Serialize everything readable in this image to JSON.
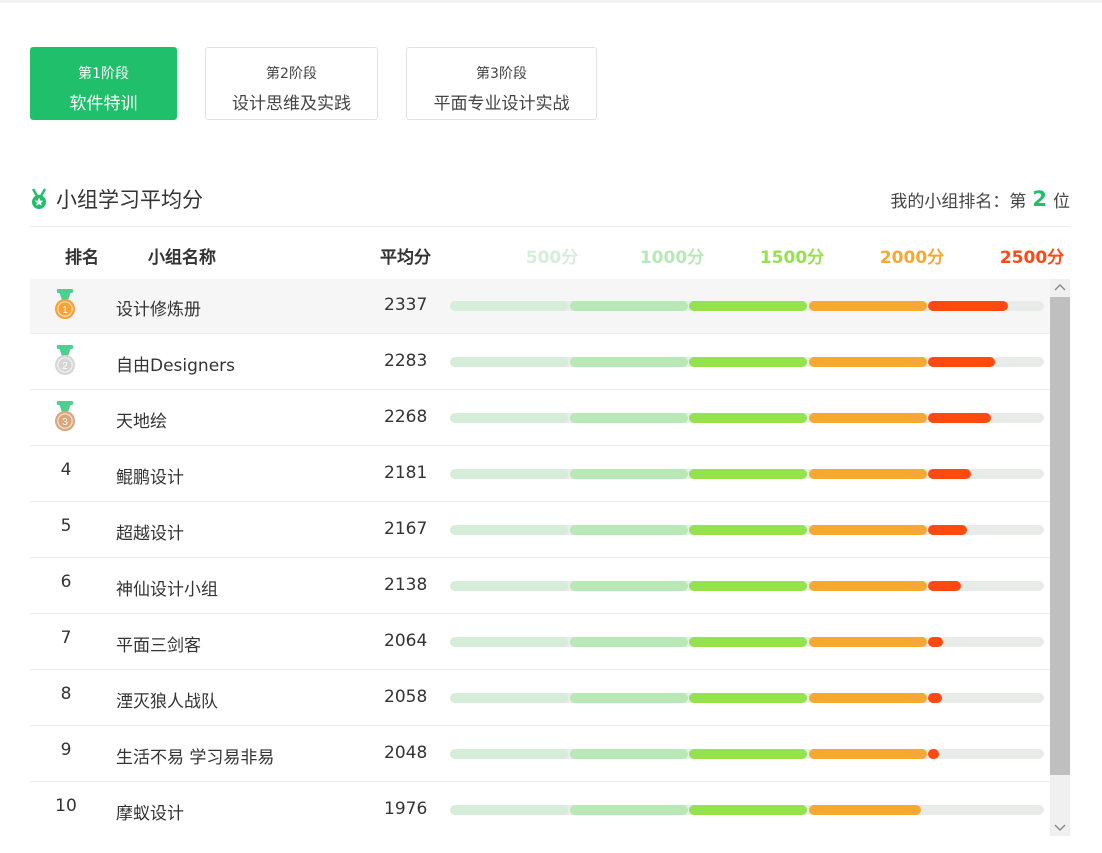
{
  "stages": [
    {
      "num_label": "第1阶段",
      "name": "软件特训",
      "active": true
    },
    {
      "num_label": "第2阶段",
      "name": "设计思维及实践",
      "active": false
    },
    {
      "num_label": "第3阶段",
      "name": "平面专业设计实战",
      "active": false
    }
  ],
  "section": {
    "title": "小组学习平均分",
    "my_rank_prefix": "我的小组排名：第",
    "my_rank_value": "2",
    "my_rank_suffix": "位"
  },
  "columns": {
    "rank": "排名",
    "name": "小组名称",
    "avg": "平均分",
    "ticks": [
      {
        "label": "500分",
        "color": "#d6eed9"
      },
      {
        "label": "1000分",
        "color": "#b7e8b6"
      },
      {
        "label": "1500分",
        "color": "#95e24f"
      },
      {
        "label": "2000分",
        "color": "#f7a833"
      },
      {
        "label": "2500分",
        "color": "#ff4a0f"
      }
    ]
  },
  "score_max": 2500,
  "rows": [
    {
      "rank": "1",
      "medal": "gold",
      "name": "设计修炼册",
      "score": 2337
    },
    {
      "rank": "2",
      "medal": "silver",
      "name": "自由Designers",
      "score": 2283
    },
    {
      "rank": "3",
      "medal": "bronze",
      "name": "天地绘",
      "score": 2268
    },
    {
      "rank": "4",
      "medal": "",
      "name": "鲲鹏设计",
      "score": 2181
    },
    {
      "rank": "5",
      "medal": "",
      "name": "超越设计",
      "score": 2167
    },
    {
      "rank": "6",
      "medal": "",
      "name": "神仙设计小组",
      "score": 2138
    },
    {
      "rank": "7",
      "medal": "",
      "name": "平面三剑客",
      "score": 2064
    },
    {
      "rank": "8",
      "medal": "",
      "name": "湮灭狼人战队",
      "score": 2058
    },
    {
      "rank": "9",
      "medal": "",
      "name": "生活不易 学习易非易",
      "score": 2048
    },
    {
      "rank": "10",
      "medal": "",
      "name": "摩蚁设计",
      "score": 1976
    }
  ],
  "colors": {
    "accent": "#20bf6b",
    "gold": "#f7a035",
    "silver": "#d6d6d6",
    "bronze": "#d9a57a",
    "ribbon": "#4fcf8f"
  },
  "icons": {
    "title": "medal-icon",
    "scroll_up": "chevron-up-icon",
    "scroll_down": "chevron-down-icon"
  }
}
